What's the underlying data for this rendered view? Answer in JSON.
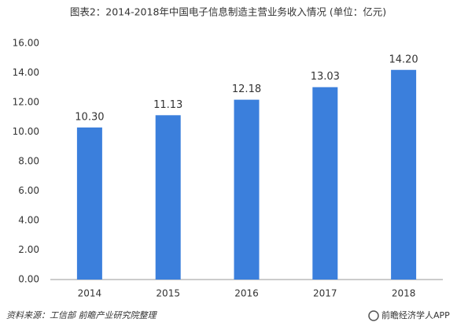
{
  "chart_data": {
    "type": "bar",
    "title": "图表2：2014-2018年中国电子信息制造主营业务收入情况 (单位：亿元)",
    "categories": [
      "2014",
      "2015",
      "2016",
      "2017",
      "2018"
    ],
    "values": [
      10.3,
      11.13,
      12.18,
      13.03,
      14.2
    ],
    "value_labels": [
      "10.30",
      "11.13",
      "12.18",
      "13.03",
      "14.20"
    ],
    "color": "#3b7fdc",
    "ylim": [
      0,
      16
    ],
    "yticks": [
      {
        "value": 0,
        "label": "0.00"
      },
      {
        "value": 2,
        "label": "2.00"
      },
      {
        "value": 4,
        "label": "4.00"
      },
      {
        "value": 6,
        "label": "6.00"
      },
      {
        "value": 8,
        "label": "8.00"
      },
      {
        "value": 10,
        "label": "10.00"
      },
      {
        "value": 12,
        "label": "12.00"
      },
      {
        "value": 14,
        "label": "14.00"
      },
      {
        "value": 16,
        "label": "16.00"
      }
    ],
    "grid": false,
    "source": "资料来源：工信部 前瞻产业研究院整理",
    "brand": "前瞻经济学人APP"
  }
}
